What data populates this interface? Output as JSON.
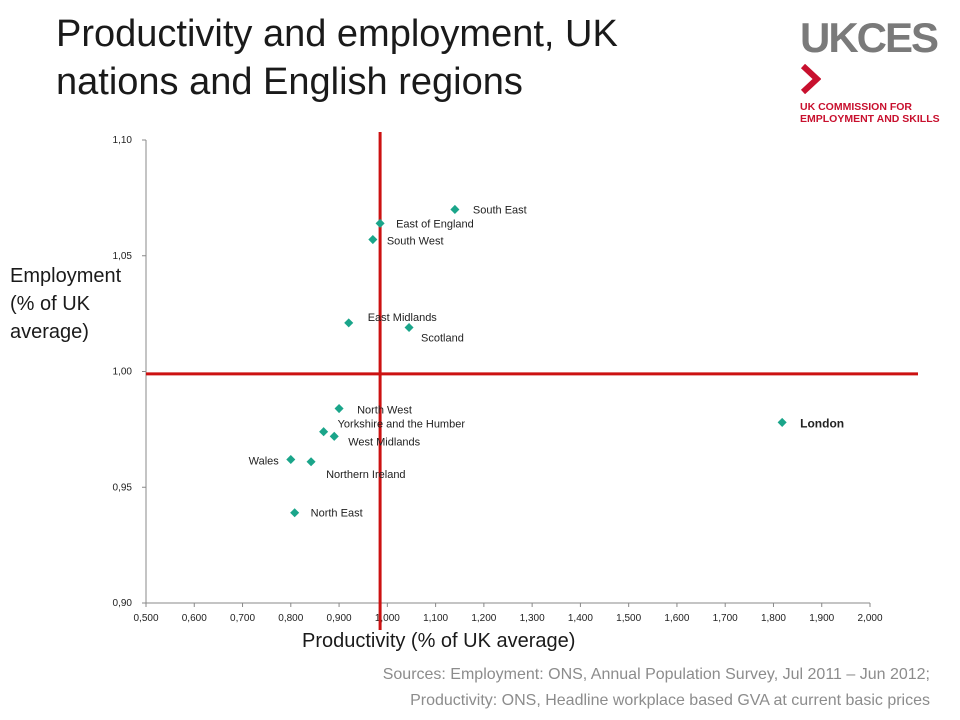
{
  "title_line1": "Productivity and employment, UK",
  "title_line2": "nations and English regions",
  "logo": {
    "word": "UKCES",
    "sub_line1": "UK COMMISSION FOR",
    "sub_line2": "EMPLOYMENT AND SKILLS"
  },
  "source_line1": "Sources: Employment: ONS, Annual Population Survey, Jul 2011 – Jun 2012;",
  "source_line2": "Productivity: ONS, Headline workplace based GVA at current basic prices",
  "colors": {
    "marker": "#1aa58a",
    "reference_line": "#cc1111",
    "axis": "#888888"
  },
  "chart_data": {
    "type": "scatter",
    "xlabel": "Productivity (% of UK average)",
    "ylabel_lines": [
      "Employment",
      "(% of UK",
      "average)"
    ],
    "xlim": [
      0.5,
      2.0
    ],
    "ylim": [
      0.9,
      1.1
    ],
    "x_ticks": [
      "0,500",
      "0,600",
      "0,700",
      "0,800",
      "0,900",
      "1,000",
      "1,100",
      "1,200",
      "1,300",
      "1,400",
      "1,500",
      "1,600",
      "1,700",
      "1,800",
      "1,900",
      "2,000"
    ],
    "y_ticks": [
      "0,90",
      "0,95",
      "1,00",
      "1,05",
      "1,10"
    ],
    "reference_lines": {
      "x": 0.985,
      "y": 0.999
    },
    "points": [
      {
        "name": "South East",
        "x": 1.14,
        "y": 1.07
      },
      {
        "name": "East of England",
        "x": 0.985,
        "y": 1.064
      },
      {
        "name": "South West",
        "x": 0.97,
        "y": 1.057
      },
      {
        "name": "East Midlands",
        "x": 0.92,
        "y": 1.021
      },
      {
        "name": "Scotland",
        "x": 1.045,
        "y": 1.019
      },
      {
        "name": "North West",
        "x": 0.9,
        "y": 0.984
      },
      {
        "name": "Yorkshire and the Humber",
        "x": 0.868,
        "y": 0.974
      },
      {
        "name": "West Midlands",
        "x": 0.89,
        "y": 0.972
      },
      {
        "name": "Wales",
        "x": 0.8,
        "y": 0.962
      },
      {
        "name": "Northern Ireland",
        "x": 0.842,
        "y": 0.961
      },
      {
        "name": "North East",
        "x": 0.808,
        "y": 0.939
      },
      {
        "name": "London",
        "x": 1.818,
        "y": 0.978
      }
    ]
  }
}
